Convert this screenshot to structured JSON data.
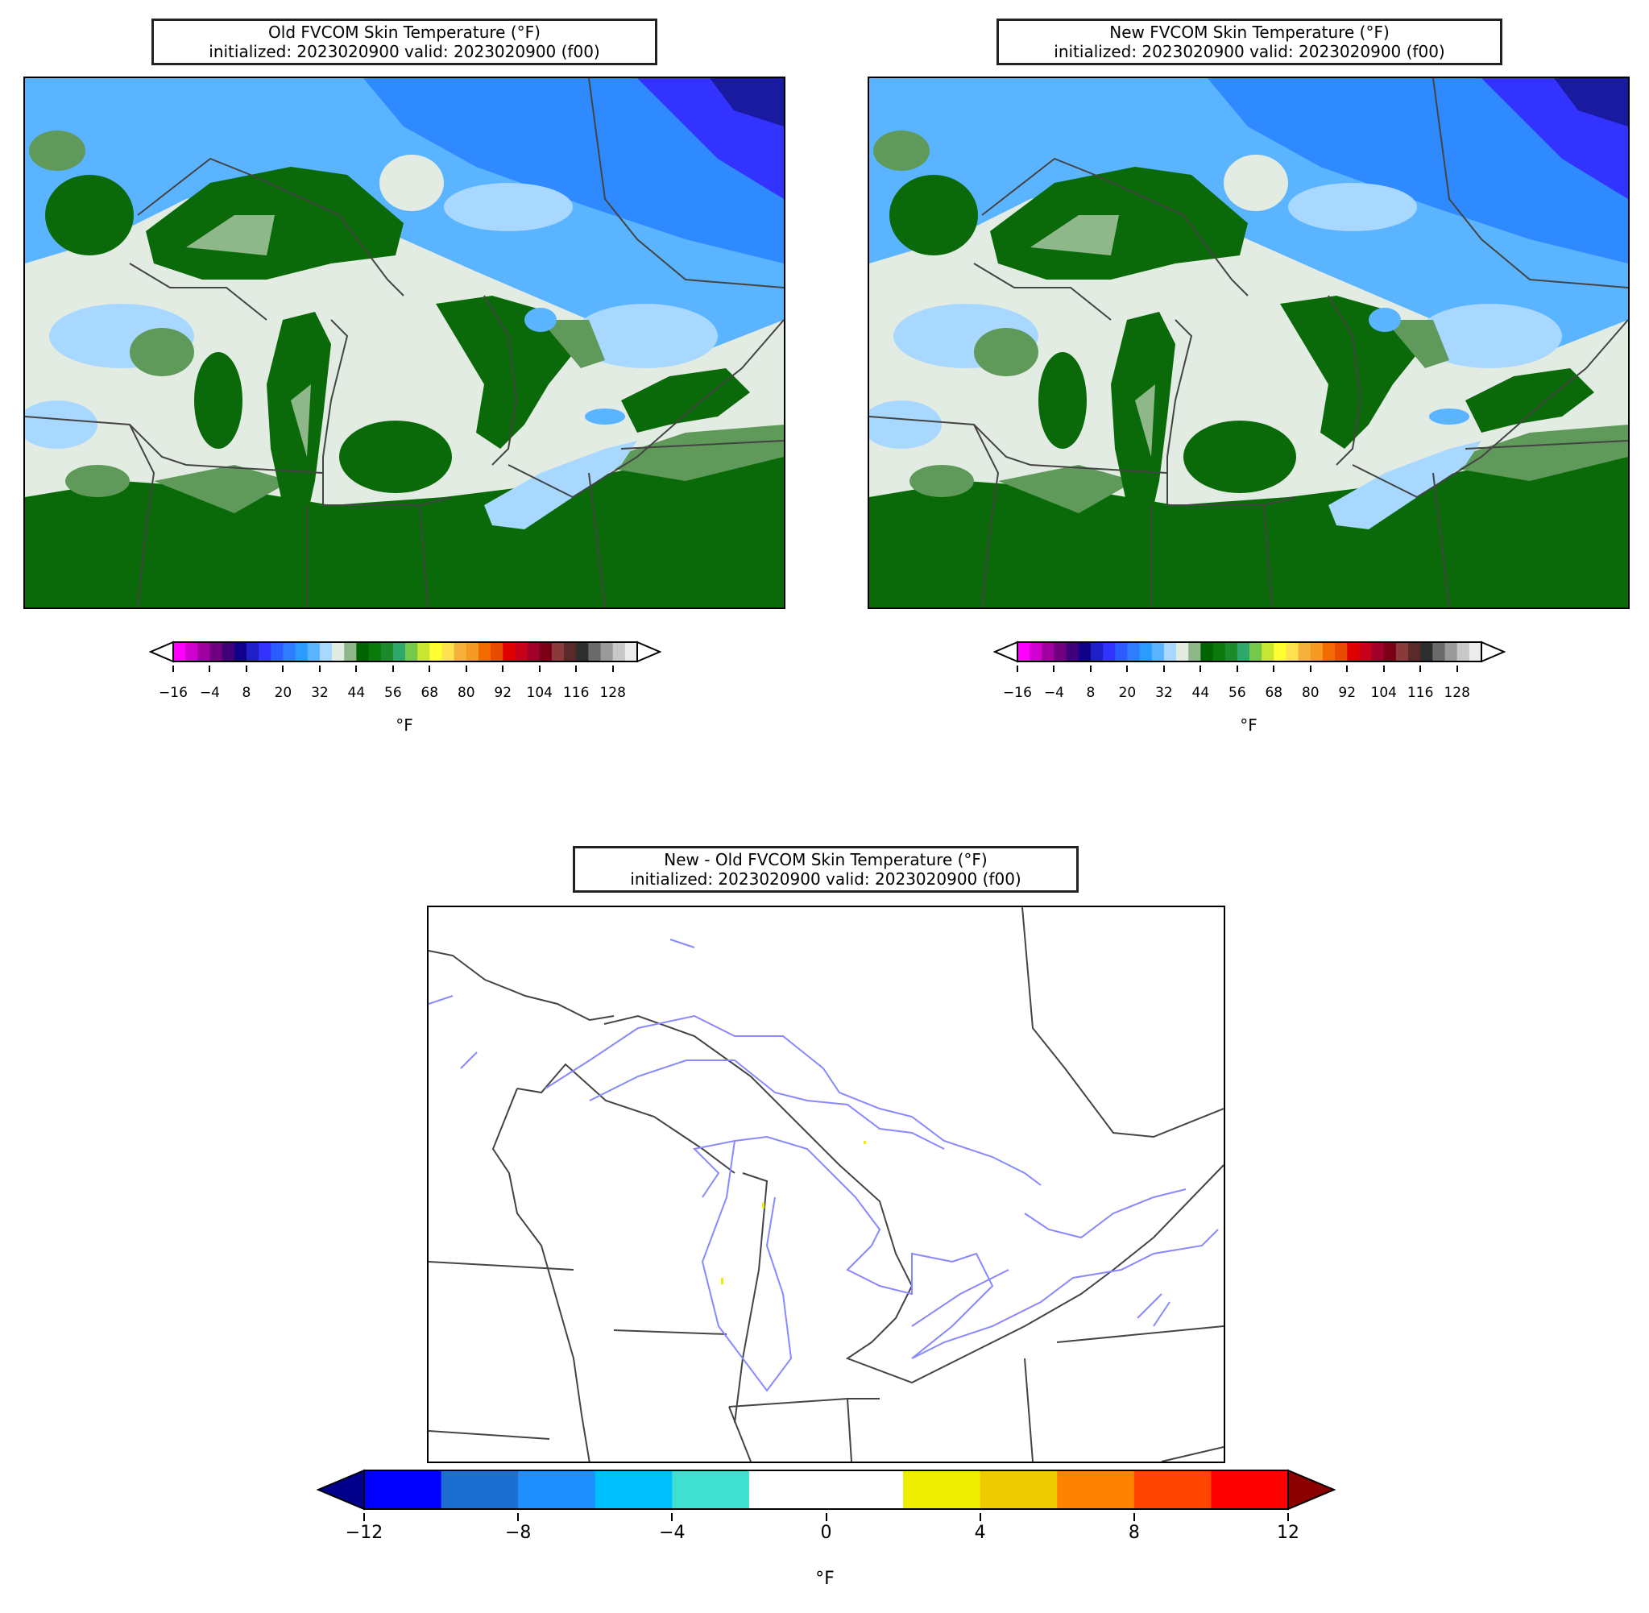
{
  "panels": {
    "old": {
      "title_line1": "Old FVCOM Skin Temperature (°F)",
      "title_line2": "initialized: 2023020900 valid: 2023020900 (f00)"
    },
    "new": {
      "title_line1": "New FVCOM Skin Temperature (°F)",
      "title_line2": "initialized: 2023020900 valid: 2023020900 (f00)"
    },
    "diff": {
      "title_line1": "New - Old FVCOM Skin Temperature (°F)",
      "title_line2": "initialized: 2023020900 valid: 2023020900 (f00)"
    }
  },
  "temp_colorbar": {
    "unit": "°F",
    "ticks": [
      "−16",
      "−4",
      "8",
      "20",
      "32",
      "44",
      "56",
      "68",
      "80",
      "92",
      "104",
      "116",
      "128"
    ],
    "colors": [
      "#ff00ff",
      "#d000d0",
      "#a000a0",
      "#700080",
      "#40007a",
      "#10008a",
      "#2020c8",
      "#3333ff",
      "#2a5cff",
      "#2f7dff",
      "#2b9bff",
      "#5ab4ff",
      "#a8d8ff",
      "#e3ece2",
      "#8fb88a",
      "#006400",
      "#0a7a0a",
      "#1a8a2a",
      "#2ea86b",
      "#74c94a",
      "#c8e632",
      "#ffff33",
      "#ffe24d",
      "#f7b03a",
      "#f59a22",
      "#f26b00",
      "#e84a00",
      "#e00000",
      "#c8001a",
      "#a0002a",
      "#7a0018",
      "#8a3a3a",
      "#5a2a2a",
      "#2e2e2e",
      "#6a6a6a",
      "#9a9a9a",
      "#c8c8c8",
      "#ececec"
    ]
  },
  "diff_colorbar": {
    "unit": "°F",
    "ticks": [
      "−12",
      "−8",
      "−4",
      "0",
      "4",
      "8",
      "12"
    ],
    "colors": [
      "#0000ff",
      "#1c6fd0",
      "#1e8fff",
      "#00bfff",
      "#40e0d0",
      "#ffffff",
      "#ffffff",
      "#eeee00",
      "#eecb00",
      "#ff8200",
      "#ff4500",
      "#ff0000"
    ],
    "under_color": "#00008b",
    "over_color": "#8b0000"
  },
  "map_colors": {
    "snow": "#e3ece2",
    "pale_blue": "#a8d8ff",
    "sky_blue": "#5ab4ff",
    "mid_blue": "#2f8aff",
    "deep_blue": "#3333ff",
    "navy": "#1a1aa0",
    "dark_green": "#0a6a0a",
    "mid_green": "#5f9a5a",
    "light_green": "#8fb88a",
    "border": "#555555",
    "coast": "#8888ff"
  }
}
